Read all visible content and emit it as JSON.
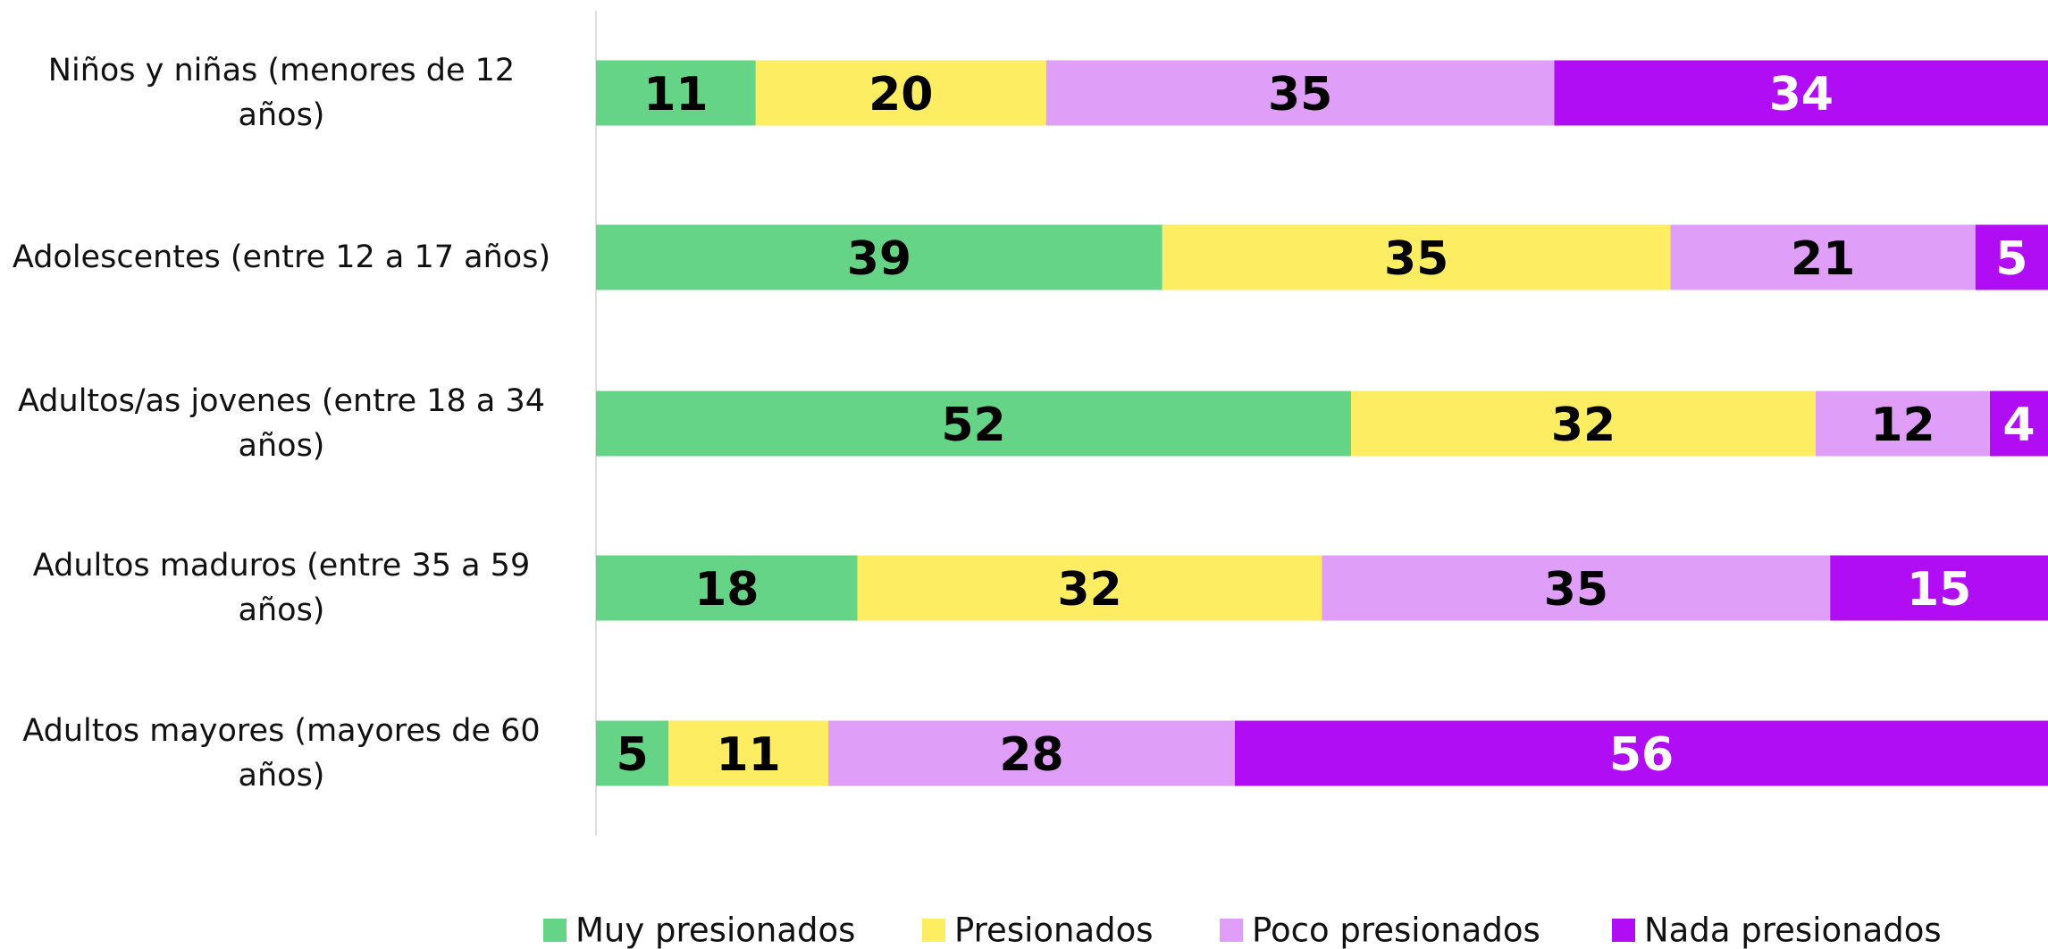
{
  "chart_data": {
    "type": "stacked_barh",
    "categories": [
      "Niños y niñas (menores de 12 años)",
      "Adolescentes (entre 12 a 17 años)",
      "Adultos/as jovenes (entre 18 a 34 años)",
      "Adultos maduros (entre 35 a 59 años)",
      "Adultos mayores (mayores de 60 años)"
    ],
    "series": [
      {
        "name": "Muy presionados",
        "color": "#66d486",
        "label_color": "#000000",
        "values": [
          11,
          39,
          52,
          18,
          5
        ]
      },
      {
        "name": "Presionados",
        "color": "#fded62",
        "label_color": "#000000",
        "values": [
          20,
          35,
          32,
          32,
          11
        ]
      },
      {
        "name": "Poco presionados",
        "color": "#df9ef8",
        "label_color": "#000000",
        "values": [
          35,
          21,
          12,
          35,
          28
        ]
      },
      {
        "name": "Nada presionados",
        "color": "#b10df5",
        "label_color": "#ffffff",
        "values": [
          34,
          5,
          4,
          15,
          56
        ]
      }
    ],
    "xlim": [
      0,
      100
    ],
    "legend": "bottom"
  }
}
